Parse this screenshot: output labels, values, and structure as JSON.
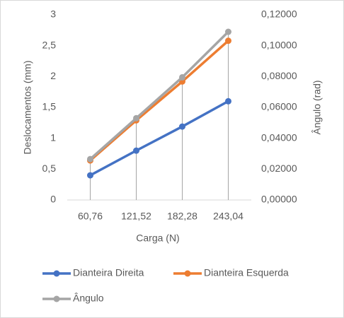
{
  "chart_data": {
    "type": "line",
    "categories": [
      "60,76",
      "121,52",
      "182,28",
      "243,04"
    ],
    "x_label": "Carga (N)",
    "y_label": "Deslocamentos (mm)",
    "y2_label": "Ângulo (rad)",
    "ylim": [
      0,
      3
    ],
    "yticks": [
      0,
      {
        "value": 0.5,
        "label": "0,5"
      },
      1,
      {
        "value": 1.5,
        "label": "1,5"
      },
      2,
      {
        "value": 2.5,
        "label": "2,5"
      },
      3
    ],
    "y2lim": [
      0,
      0.12
    ],
    "y2ticks": [
      {
        "value": 0,
        "label": "0,00000"
      },
      {
        "value": 0.02,
        "label": "0,02000"
      },
      {
        "value": 0.04,
        "label": "0,04000"
      },
      {
        "value": 0.06,
        "label": "0,06000"
      },
      {
        "value": 0.08,
        "label": "0,08000"
      },
      {
        "value": 0.1,
        "label": "0,10000"
      },
      {
        "value": 0.12,
        "label": "0,12000"
      }
    ],
    "drop_lines": true,
    "series": [
      {
        "name": "Dianteira Direita",
        "color": "#4472c4",
        "values": [
          0.4,
          0.8,
          1.19,
          1.6
        ]
      },
      {
        "name": "Dianteira Esquerda",
        "color": "#ed7d31",
        "values": [
          0.64,
          1.29,
          1.92,
          2.58
        ]
      },
      {
        "name": "Ângulo",
        "color": "#a5a5a5",
        "axis": "y2",
        "values": [
          0.0265,
          0.053,
          0.0795,
          0.109
        ]
      }
    ]
  }
}
